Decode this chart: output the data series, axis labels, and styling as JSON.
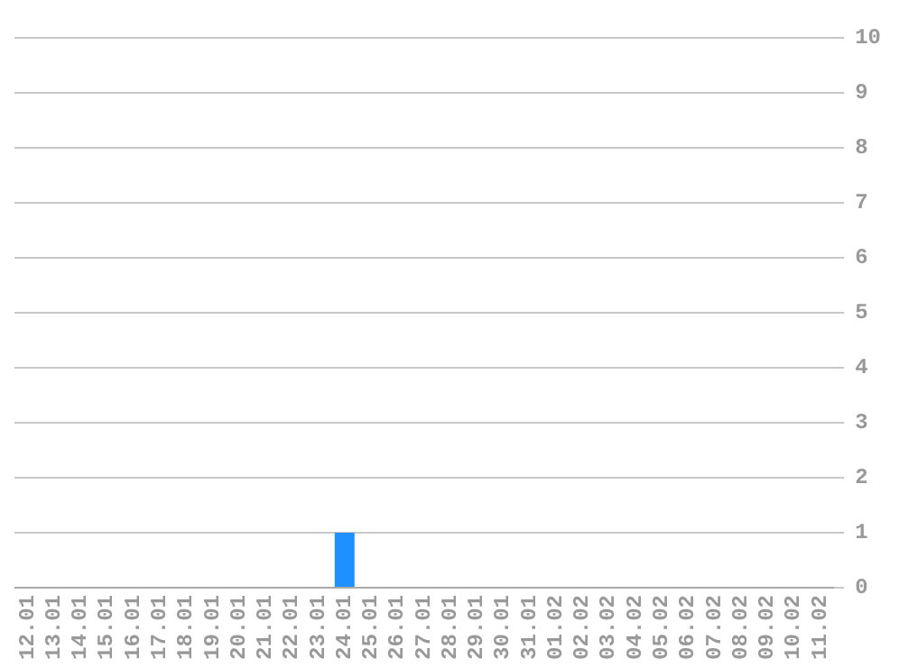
{
  "chart_data": {
    "type": "bar",
    "categories": [
      "12.01",
      "13.01",
      "14.01",
      "15.01",
      "16.01",
      "17.01",
      "18.01",
      "19.01",
      "20.01",
      "21.01",
      "22.01",
      "23.01",
      "24.01",
      "25.01",
      "26.01",
      "27.01",
      "28.01",
      "29.01",
      "30.01",
      "31.01",
      "01.02",
      "02.02",
      "03.02",
      "04.02",
      "05.02",
      "06.02",
      "07.02",
      "08.02",
      "09.02",
      "10.02",
      "11.02"
    ],
    "values": [
      0,
      0,
      0,
      0,
      0,
      0,
      0,
      0,
      0,
      0,
      0,
      0,
      1,
      0,
      0,
      0,
      0,
      0,
      0,
      0,
      0,
      0,
      0,
      0,
      0,
      0,
      0,
      0,
      0,
      0,
      0
    ],
    "color": "#1e90ff",
    "ylim": [
      0,
      10
    ],
    "yticks": [
      0,
      1,
      2,
      3,
      4,
      5,
      6,
      7,
      8,
      9,
      10
    ],
    "grid": "y",
    "legend": false
  }
}
